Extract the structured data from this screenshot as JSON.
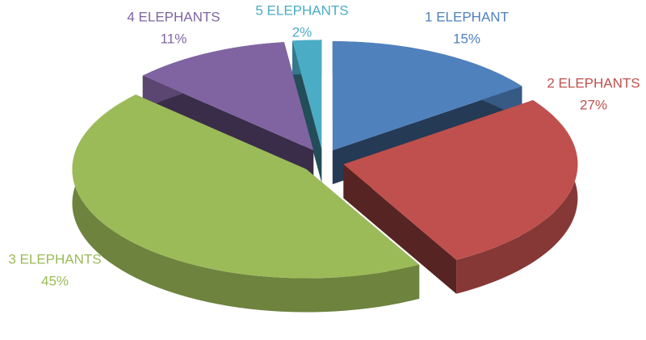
{
  "chart_data": {
    "type": "pie",
    "categories": [
      "1 ELEPHANT",
      "2 ELEPHANTS",
      "3 ELEPHANTS",
      "4 ELEPHANTS",
      "5 ELEPHANTS"
    ],
    "values": [
      15,
      27,
      45,
      11,
      2
    ],
    "value_labels": [
      "15%",
      "27%",
      "45%",
      "11%",
      "2%"
    ],
    "colors": [
      "#4f81bd",
      "#c0504d",
      "#9bbb59",
      "#8064a2",
      "#4bacc6"
    ]
  }
}
